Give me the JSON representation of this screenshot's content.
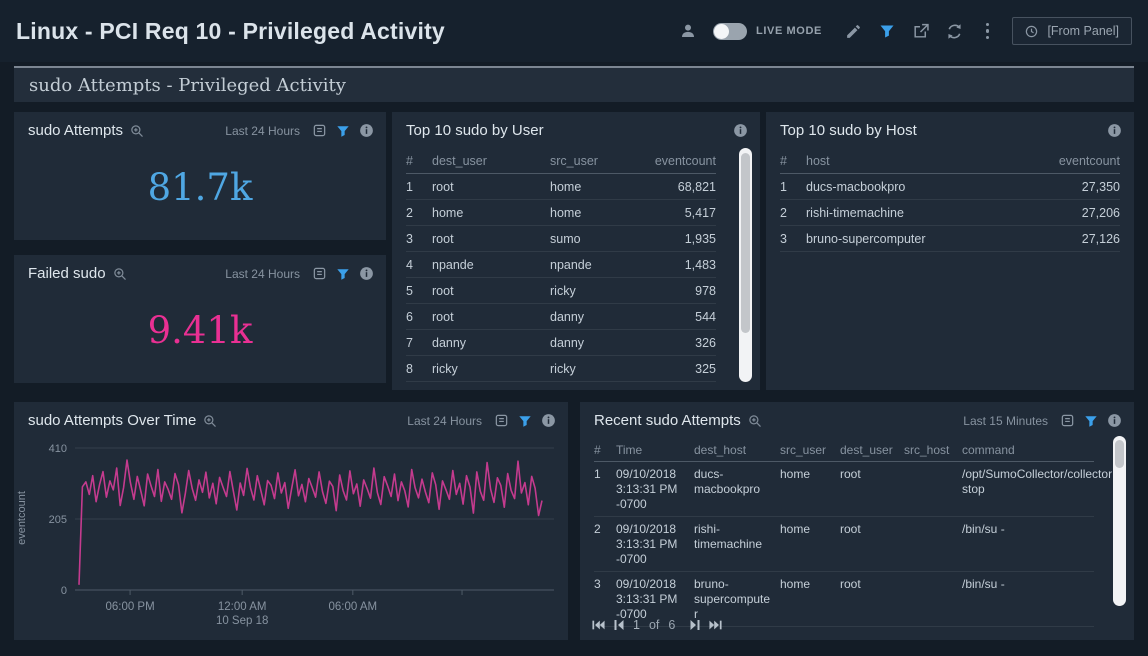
{
  "header": {
    "title": "Linux - PCI Req 10 - Privileged Activity",
    "live_mode_label": "LIVE MODE",
    "time_selector_label": "[From Panel]"
  },
  "subtitle": "sudo Attempts - Privileged Activity",
  "accent": {
    "filter_blue": "#3ba0ea"
  },
  "icons": {
    "topbar": [
      "person-icon",
      "live-mode-toggle",
      "pencil-icon",
      "funnel-icon",
      "export-icon",
      "refresh-icon",
      "kebab-menu-icon",
      "clock-icon"
    ],
    "panel": [
      "zoom-in-icon",
      "copy-icon",
      "funnel-icon",
      "info-icon"
    ],
    "pagination": [
      "first-page-icon",
      "prev-page-icon",
      "next-page-icon",
      "last-page-icon"
    ]
  },
  "panels": {
    "sudo_attempts": {
      "title": "sudo Attempts",
      "time_range": "Last 24 Hours",
      "value": "81.7k",
      "color": "#4fa7e3"
    },
    "failed_sudo": {
      "title": "Failed sudo",
      "time_range": "Last 24 Hours",
      "value": "9.41k",
      "color": "#e93093"
    },
    "top_user": {
      "title": "Top 10 sudo by User",
      "columns": [
        "#",
        "dest_user",
        "src_user",
        "eventcount"
      ],
      "rows": [
        [
          "1",
          "root",
          "home",
          "68,821"
        ],
        [
          "2",
          "home",
          "home",
          "5,417"
        ],
        [
          "3",
          "root",
          "sumo",
          "1,935"
        ],
        [
          "4",
          "npande",
          "npande",
          "1,483"
        ],
        [
          "5",
          "root",
          "ricky",
          "978"
        ],
        [
          "6",
          "root",
          "danny",
          "544"
        ],
        [
          "7",
          "danny",
          "danny",
          "326"
        ],
        [
          "8",
          "ricky",
          "ricky",
          "325"
        ]
      ]
    },
    "top_host": {
      "title": "Top 10 sudo by Host",
      "columns": [
        "#",
        "host",
        "eventcount"
      ],
      "rows": [
        [
          "1",
          "ducs-macbookpro",
          "27,350"
        ],
        [
          "2",
          "rishi-timemachine",
          "27,206"
        ],
        [
          "3",
          "bruno-supercomputer",
          "27,126"
        ]
      ]
    },
    "over_time": {
      "title": "sudo Attempts Over Time",
      "time_range": "Last 24 Hours"
    },
    "recent": {
      "title": "Recent sudo Attempts",
      "time_range": "Last 15 Minutes",
      "columns": [
        "#",
        "Time",
        "dest_host",
        "src_user",
        "dest_user",
        "src_host",
        "command"
      ],
      "rows": [
        [
          "1",
          "09/10/2018 3:13:31 PM -0700",
          "ducs-macbookpro",
          "home",
          "root",
          "",
          "/opt/SumoCollector/collector stop"
        ],
        [
          "2",
          "09/10/2018 3:13:31 PM -0700",
          "rishi-timemachine",
          "home",
          "root",
          "",
          "/bin/su -"
        ],
        [
          "3",
          "09/10/2018 3:13:31 PM -0700",
          "bruno-supercomputer",
          "home",
          "root",
          "",
          "/bin/su -"
        ]
      ],
      "pagination": {
        "page": "1",
        "of": "of",
        "total": "6"
      }
    }
  },
  "chart_data": {
    "type": "line",
    "title": "sudo Attempts Over Time",
    "xlabel": "",
    "ylabel": "eventcount",
    "ylim": [
      0,
      410
    ],
    "yticks": [
      0,
      205,
      410
    ],
    "grid": true,
    "legend": false,
    "xticks": [
      {
        "pos": 0.115,
        "label": "06:00 PM"
      },
      {
        "pos": 0.349,
        "label": "12:00 AM",
        "sublabel": "10 Sep 18"
      },
      {
        "pos": 0.58,
        "label": "06:00 AM"
      },
      {
        "pos": 0.808,
        "label": ""
      }
    ],
    "series": [
      {
        "name": "eventcount",
        "color": "#c43b8e",
        "values": [
          15,
          298,
          312,
          276,
          330,
          255,
          305,
          342,
          268,
          315,
          289,
          352,
          244,
          296,
          375,
          310,
          262,
          328,
          287,
          243,
          335,
          301,
          270,
          348,
          256,
          312,
          290,
          262,
          336,
          304,
          223,
          278,
          345,
          293,
          259,
          318,
          282,
          340,
          266,
          308,
          249,
          325,
          297,
          270,
          342,
          286,
          231,
          309,
          273,
          351,
          295,
          260,
          330,
          288,
          246,
          316,
          302,
          264,
          338,
          280,
          310,
          236,
          292,
          347,
          272,
          305,
          255,
          322,
          296,
          268,
          341,
          284,
          250,
          314,
          299,
          229,
          332,
          287,
          260,
          344,
          278,
          306,
          242,
          318,
          293,
          265,
          352,
          281,
          247,
          327,
          300,
          270,
          335,
          258,
          312,
          286,
          240,
          348,
          295,
          266,
          320,
          283,
          252,
          338,
          304,
          233,
          315,
          289,
          262,
          345,
          276,
          308,
          248,
          330,
          297,
          222,
          341,
          285,
          259,
          368,
          291,
          253,
          324,
          302,
          239,
          336,
          288,
          264,
          372,
          280,
          310,
          246,
          328,
          294,
          215,
          258
        ]
      }
    ]
  }
}
